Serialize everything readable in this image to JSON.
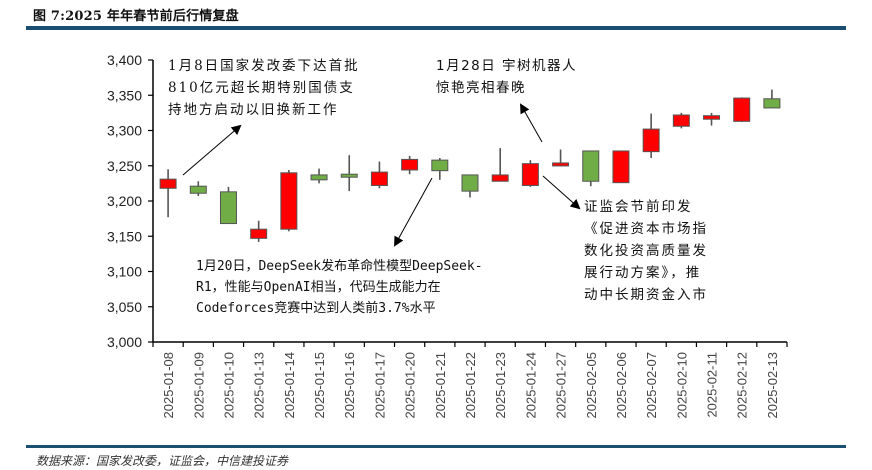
{
  "header": {
    "title": "图 7:2025 年年春节前后行情复盘",
    "rule_color": "#1a4f72"
  },
  "footer": {
    "source": "数据来源：国家发改委，证监会，中信建投证券"
  },
  "annotations": [
    {
      "id": "ndrc",
      "lines": [
        "1月8日国家发改委下达首批",
        "810亿元超长期特别国债支",
        "持地方启动以旧换新工作"
      ]
    },
    {
      "id": "unitree",
      "lines": [
        "1月28日  宇树机器人",
        "惊艳亮相春晚"
      ]
    },
    {
      "id": "deepseek",
      "lines": [
        "1月20日，DeepSeek发布革命性模型DeepSeek-",
        "R1，性能与OpenAI相当，代码生成能力在",
        "Codeforces竞赛中达到人类前3.7%水平"
      ]
    },
    {
      "id": "csrc",
      "lines": [
        "证监会节前印发",
        "《促进资本市场指",
        "数化投资高质量发",
        "展行动方案》，推",
        "动中长期资金入市"
      ]
    }
  ],
  "colors": {
    "up": "#ff0000",
    "down": "#70ad47",
    "border": "#555555",
    "axis": "#000000"
  },
  "chart_data": {
    "type": "candlestick",
    "title": "2025年年春节前后行情复盘",
    "xlabel": "",
    "ylabel": "",
    "ylim": [
      3000,
      3400
    ],
    "yticks": [
      3000,
      3050,
      3100,
      3150,
      3200,
      3250,
      3300,
      3350,
      3400
    ],
    "ytick_labels": [
      "3,000",
      "3,050",
      "3,100",
      "3,150",
      "3,200",
      "3,250",
      "3,300",
      "3,350",
      "3,400"
    ],
    "grid": false,
    "legend": null,
    "categories": [
      "2025-01-08",
      "2025-01-09",
      "2025-01-10",
      "2025-01-13",
      "2025-01-14",
      "2025-01-15",
      "2025-01-16",
      "2025-01-17",
      "2025-01-20",
      "2025-01-21",
      "2025-01-22",
      "2025-01-23",
      "2025-01-24",
      "2025-01-27",
      "2025-02-05",
      "2025-02-06",
      "2025-02-07",
      "2025-02-10",
      "2025-02-11",
      "2025-02-12",
      "2025-02-13"
    ],
    "series": [
      {
        "name": "open",
        "values": [
          3218,
          3221,
          3213,
          3147,
          3160,
          3237,
          3238,
          3222,
          3244,
          3258,
          3237,
          3228,
          3222,
          3250,
          3271,
          3226,
          3270,
          3306,
          3316,
          3313,
          3345
        ]
      },
      {
        "name": "high",
        "values": [
          3245,
          3228,
          3220,
          3172,
          3244,
          3246,
          3265,
          3256,
          3264,
          3261,
          3237,
          3275,
          3258,
          3273,
          3271,
          3271,
          3324,
          3325,
          3325,
          3347,
          3358
        ]
      },
      {
        "name": "low",
        "values": [
          3177,
          3207,
          3168,
          3142,
          3157,
          3225,
          3214,
          3218,
          3238,
          3230,
          3205,
          3229,
          3220,
          3249,
          3221,
          3226,
          3261,
          3303,
          3307,
          3312,
          3332
        ]
      },
      {
        "name": "close",
        "values": [
          3231,
          3211,
          3168,
          3160,
          3240,
          3230,
          3237,
          3241,
          3259,
          3243,
          3214,
          3237,
          3253,
          3254,
          3228,
          3271,
          3302,
          3322,
          3321,
          3346,
          3332
        ]
      }
    ]
  }
}
